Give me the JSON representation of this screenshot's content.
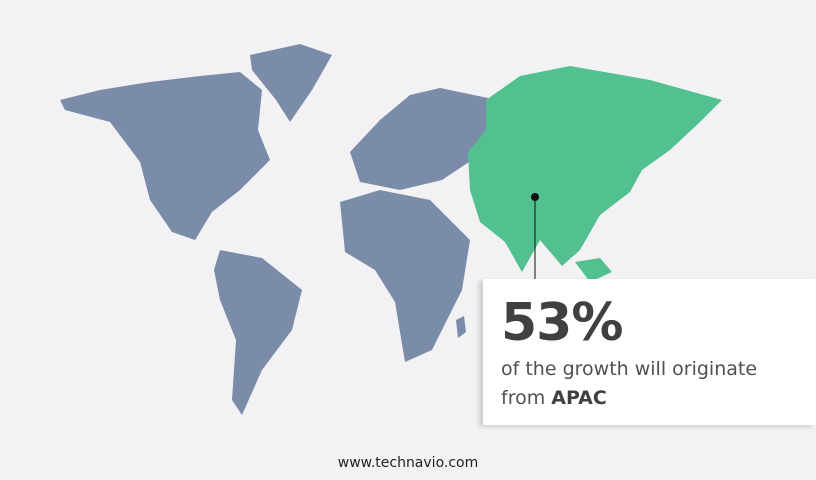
{
  "highlight": {
    "region": "APAC",
    "value": "53%",
    "text": "of the growth will originate",
    "prefix": "from",
    "region_label": "APAC"
  },
  "colors": {
    "land": "#7a8ca8",
    "highlight": "#52c08f",
    "background": "#f2f2f4"
  },
  "footer": "www.technavio.com"
}
